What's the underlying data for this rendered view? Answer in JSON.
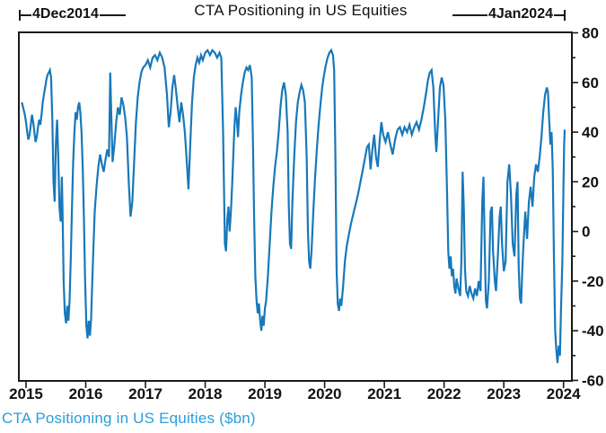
{
  "title": "CTA Positioning in US Equities",
  "annotations": {
    "start_label": "4Dec2014",
    "end_label": "4Jan2024"
  },
  "caption": "CTA Positioning in US Equities ($bn)",
  "colors": {
    "line": "#1878ba",
    "caption_text": "#2b9dda",
    "axis": "#1a1a1a",
    "title_text": "#111111"
  },
  "chart_data": {
    "type": "line",
    "title": "CTA Positioning in US Equities",
    "series_name": "CTA Positioning in US Equities ($bn)",
    "xlabel": "",
    "ylabel": "$bn",
    "x_ticks": [
      2015,
      2016,
      2017,
      2018,
      2019,
      2020,
      2021,
      2022,
      2023,
      2024
    ],
    "y_ticks": [
      -60,
      -40,
      -20,
      0,
      20,
      40,
      60,
      80
    ],
    "y_minor_step": 10,
    "xlim": [
      2014.88,
      2024.14
    ],
    "ylim": [
      -60.2,
      80.2
    ],
    "grid": false,
    "legend": "none",
    "date_range": [
      "4Dec2014",
      "4Jan2024"
    ],
    "points": [
      [
        2014.93,
        52
      ],
      [
        2014.95,
        50
      ],
      [
        2014.98,
        47
      ],
      [
        2015.0,
        44
      ],
      [
        2015.02,
        40
      ],
      [
        2015.04,
        37
      ],
      [
        2015.06,
        39
      ],
      [
        2015.08,
        43
      ],
      [
        2015.1,
        47
      ],
      [
        2015.12,
        44
      ],
      [
        2015.14,
        40
      ],
      [
        2015.16,
        36
      ],
      [
        2015.18,
        38
      ],
      [
        2015.2,
        42
      ],
      [
        2015.22,
        45
      ],
      [
        2015.24,
        43
      ],
      [
        2015.26,
        47
      ],
      [
        2015.28,
        52
      ],
      [
        2015.3,
        55
      ],
      [
        2015.32,
        58
      ],
      [
        2015.34,
        61
      ],
      [
        2015.36,
        63
      ],
      [
        2015.38,
        64
      ],
      [
        2015.4,
        65
      ],
      [
        2015.42,
        62
      ],
      [
        2015.44,
        45
      ],
      [
        2015.46,
        20
      ],
      [
        2015.48,
        12
      ],
      [
        2015.5,
        35
      ],
      [
        2015.52,
        45
      ],
      [
        2015.54,
        30
      ],
      [
        2015.56,
        10
      ],
      [
        2015.58,
        4
      ],
      [
        2015.6,
        22
      ],
      [
        2015.61,
        10
      ],
      [
        2015.63,
        -20
      ],
      [
        2015.65,
        -33
      ],
      [
        2015.67,
        -37
      ],
      [
        2015.69,
        -30
      ],
      [
        2015.71,
        -36
      ],
      [
        2015.73,
        -28
      ],
      [
        2015.75,
        -10
      ],
      [
        2015.77,
        10
      ],
      [
        2015.79,
        28
      ],
      [
        2015.81,
        40
      ],
      [
        2015.83,
        48
      ],
      [
        2015.85,
        45
      ],
      [
        2015.87,
        50
      ],
      [
        2015.89,
        52
      ],
      [
        2015.91,
        48
      ],
      [
        2015.93,
        40
      ],
      [
        2015.95,
        25
      ],
      [
        2015.97,
        5
      ],
      [
        2015.99,
        -20
      ],
      [
        2016.01,
        -38
      ],
      [
        2016.03,
        -43
      ],
      [
        2016.05,
        -36
      ],
      [
        2016.07,
        -42
      ],
      [
        2016.09,
        -35
      ],
      [
        2016.11,
        -20
      ],
      [
        2016.13,
        -5
      ],
      [
        2016.15,
        8
      ],
      [
        2016.18,
        18
      ],
      [
        2016.21,
        26
      ],
      [
        2016.24,
        31
      ],
      [
        2016.27,
        27
      ],
      [
        2016.3,
        24
      ],
      [
        2016.33,
        29
      ],
      [
        2016.36,
        33
      ],
      [
        2016.39,
        30
      ],
      [
        2016.41,
        64
      ],
      [
        2016.43,
        45
      ],
      [
        2016.45,
        28
      ],
      [
        2016.48,
        35
      ],
      [
        2016.51,
        44
      ],
      [
        2016.54,
        50
      ],
      [
        2016.57,
        47
      ],
      [
        2016.6,
        54
      ],
      [
        2016.63,
        51
      ],
      [
        2016.66,
        46
      ],
      [
        2016.69,
        38
      ],
      [
        2016.72,
        20
      ],
      [
        2016.75,
        6
      ],
      [
        2016.78,
        12
      ],
      [
        2016.81,
        28
      ],
      [
        2016.84,
        44
      ],
      [
        2016.87,
        54
      ],
      [
        2016.9,
        60
      ],
      [
        2016.93,
        64
      ],
      [
        2016.96,
        66
      ],
      [
        2017.0,
        67
      ],
      [
        2017.04,
        69
      ],
      [
        2017.08,
        66
      ],
      [
        2017.12,
        70
      ],
      [
        2017.16,
        71
      ],
      [
        2017.2,
        69
      ],
      [
        2017.24,
        72
      ],
      [
        2017.28,
        70
      ],
      [
        2017.32,
        66
      ],
      [
        2017.36,
        55
      ],
      [
        2017.39,
        42
      ],
      [
        2017.42,
        48
      ],
      [
        2017.45,
        58
      ],
      [
        2017.48,
        63
      ],
      [
        2017.51,
        57
      ],
      [
        2017.54,
        50
      ],
      [
        2017.57,
        44
      ],
      [
        2017.6,
        52
      ],
      [
        2017.63,
        47
      ],
      [
        2017.66,
        40
      ],
      [
        2017.7,
        25
      ],
      [
        2017.72,
        17
      ],
      [
        2017.75,
        35
      ],
      [
        2017.78,
        52
      ],
      [
        2017.81,
        62
      ],
      [
        2017.84,
        67
      ],
      [
        2017.87,
        70
      ],
      [
        2017.9,
        68
      ],
      [
        2017.93,
        71
      ],
      [
        2017.96,
        69
      ],
      [
        2018.0,
        72
      ],
      [
        2018.04,
        73
      ],
      [
        2018.08,
        71
      ],
      [
        2018.12,
        73
      ],
      [
        2018.16,
        72
      ],
      [
        2018.2,
        70
      ],
      [
        2018.24,
        72
      ],
      [
        2018.27,
        70
      ],
      [
        2018.3,
        40
      ],
      [
        2018.33,
        -5
      ],
      [
        2018.35,
        -8
      ],
      [
        2018.37,
        5
      ],
      [
        2018.39,
        10
      ],
      [
        2018.41,
        0
      ],
      [
        2018.43,
        8
      ],
      [
        2018.45,
        18
      ],
      [
        2018.47,
        30
      ],
      [
        2018.49,
        42
      ],
      [
        2018.51,
        50
      ],
      [
        2018.53,
        45
      ],
      [
        2018.55,
        38
      ],
      [
        2018.57,
        48
      ],
      [
        2018.6,
        55
      ],
      [
        2018.63,
        60
      ],
      [
        2018.66,
        64
      ],
      [
        2018.69,
        66
      ],
      [
        2018.72,
        65
      ],
      [
        2018.75,
        67
      ],
      [
        2018.78,
        62
      ],
      [
        2018.8,
        35
      ],
      [
        2018.82,
        5
      ],
      [
        2018.84,
        -18
      ],
      [
        2018.86,
        -28
      ],
      [
        2018.88,
        -33
      ],
      [
        2018.9,
        -29
      ],
      [
        2018.92,
        -36
      ],
      [
        2018.94,
        -40
      ],
      [
        2018.96,
        -34
      ],
      [
        2018.98,
        -38
      ],
      [
        2019.0,
        -31
      ],
      [
        2019.02,
        -28
      ],
      [
        2019.05,
        -18
      ],
      [
        2019.08,
        -5
      ],
      [
        2019.11,
        8
      ],
      [
        2019.14,
        18
      ],
      [
        2019.17,
        26
      ],
      [
        2019.2,
        32
      ],
      [
        2019.23,
        40
      ],
      [
        2019.26,
        50
      ],
      [
        2019.29,
        57
      ],
      [
        2019.32,
        60
      ],
      [
        2019.35,
        55
      ],
      [
        2019.38,
        40
      ],
      [
        2019.4,
        10
      ],
      [
        2019.42,
        -5
      ],
      [
        2019.44,
        -7
      ],
      [
        2019.46,
        12
      ],
      [
        2019.49,
        30
      ],
      [
        2019.52,
        44
      ],
      [
        2019.55,
        52
      ],
      [
        2019.58,
        56
      ],
      [
        2019.61,
        59
      ],
      [
        2019.64,
        57
      ],
      [
        2019.67,
        52
      ],
      [
        2019.7,
        30
      ],
      [
        2019.72,
        0
      ],
      [
        2019.74,
        -12
      ],
      [
        2019.76,
        -15
      ],
      [
        2019.78,
        -8
      ],
      [
        2019.81,
        8
      ],
      [
        2019.84,
        22
      ],
      [
        2019.87,
        33
      ],
      [
        2019.9,
        43
      ],
      [
        2019.93,
        51
      ],
      [
        2019.96,
        58
      ],
      [
        2019.99,
        63
      ],
      [
        2020.02,
        67
      ],
      [
        2020.05,
        70
      ],
      [
        2020.08,
        72
      ],
      [
        2020.11,
        73
      ],
      [
        2020.14,
        71
      ],
      [
        2020.16,
        65
      ],
      [
        2020.18,
        30
      ],
      [
        2020.2,
        -15
      ],
      [
        2020.22,
        -29
      ],
      [
        2020.24,
        -32
      ],
      [
        2020.26,
        -27
      ],
      [
        2020.28,
        -30
      ],
      [
        2020.31,
        -22
      ],
      [
        2020.34,
        -12
      ],
      [
        2020.37,
        -6
      ],
      [
        2020.4,
        -2
      ],
      [
        2020.44,
        3
      ],
      [
        2020.48,
        7
      ],
      [
        2020.52,
        11
      ],
      [
        2020.56,
        15
      ],
      [
        2020.6,
        20
      ],
      [
        2020.64,
        25
      ],
      [
        2020.68,
        30
      ],
      [
        2020.71,
        34
      ],
      [
        2020.74,
        35
      ],
      [
        2020.77,
        25
      ],
      [
        2020.8,
        33
      ],
      [
        2020.83,
        39
      ],
      [
        2020.86,
        30
      ],
      [
        2020.89,
        26
      ],
      [
        2020.92,
        36
      ],
      [
        2020.95,
        44
      ],
      [
        2020.98,
        39
      ],
      [
        2021.02,
        36
      ],
      [
        2021.06,
        40
      ],
      [
        2021.1,
        35
      ],
      [
        2021.14,
        31
      ],
      [
        2021.18,
        37
      ],
      [
        2021.22,
        41
      ],
      [
        2021.26,
        42
      ],
      [
        2021.3,
        39
      ],
      [
        2021.34,
        42
      ],
      [
        2021.38,
        40
      ],
      [
        2021.42,
        43
      ],
      [
        2021.46,
        39
      ],
      [
        2021.5,
        42
      ],
      [
        2021.54,
        44
      ],
      [
        2021.58,
        41
      ],
      [
        2021.62,
        45
      ],
      [
        2021.66,
        50
      ],
      [
        2021.7,
        56
      ],
      [
        2021.73,
        61
      ],
      [
        2021.76,
        64
      ],
      [
        2021.79,
        65
      ],
      [
        2021.82,
        58
      ],
      [
        2021.85,
        40
      ],
      [
        2021.87,
        32
      ],
      [
        2021.9,
        45
      ],
      [
        2021.93,
        58
      ],
      [
        2021.96,
        62
      ],
      [
        2021.99,
        59
      ],
      [
        2022.02,
        45
      ],
      [
        2022.05,
        15
      ],
      [
        2022.07,
        -8
      ],
      [
        2022.09,
        -15
      ],
      [
        2022.11,
        -10
      ],
      [
        2022.13,
        -18
      ],
      [
        2022.15,
        -15
      ],
      [
        2022.17,
        -22
      ],
      [
        2022.19,
        -25
      ],
      [
        2022.21,
        -19
      ],
      [
        2022.24,
        -23
      ],
      [
        2022.27,
        -26
      ],
      [
        2022.29,
        -12
      ],
      [
        2022.31,
        24
      ],
      [
        2022.33,
        10
      ],
      [
        2022.35,
        -15
      ],
      [
        2022.37,
        -24
      ],
      [
        2022.4,
        -26
      ],
      [
        2022.43,
        -22
      ],
      [
        2022.46,
        -25
      ],
      [
        2022.49,
        -27
      ],
      [
        2022.52,
        -23
      ],
      [
        2022.55,
        -26
      ],
      [
        2022.58,
        -20
      ],
      [
        2022.61,
        -24
      ],
      [
        2022.64,
        12
      ],
      [
        2022.66,
        22
      ],
      [
        2022.68,
        -5
      ],
      [
        2022.7,
        -28
      ],
      [
        2022.72,
        -31
      ],
      [
        2022.75,
        -20
      ],
      [
        2022.78,
        8
      ],
      [
        2022.8,
        10
      ],
      [
        2022.82,
        -8
      ],
      [
        2022.85,
        -20
      ],
      [
        2022.87,
        -24
      ],
      [
        2022.9,
        -10
      ],
      [
        2022.93,
        6
      ],
      [
        2022.95,
        10
      ],
      [
        2022.97,
        -5
      ],
      [
        2023.0,
        -16
      ],
      [
        2023.03,
        -12
      ],
      [
        2023.06,
        20
      ],
      [
        2023.09,
        27
      ],
      [
        2023.12,
        15
      ],
      [
        2023.15,
        -5
      ],
      [
        2023.18,
        -10
      ],
      [
        2023.21,
        15
      ],
      [
        2023.23,
        20
      ],
      [
        2023.25,
        -15
      ],
      [
        2023.27,
        -27
      ],
      [
        2023.29,
        -29
      ],
      [
        2023.31,
        -15
      ],
      [
        2023.33,
        -5
      ],
      [
        2023.36,
        8
      ],
      [
        2023.39,
        -3
      ],
      [
        2023.42,
        12
      ],
      [
        2023.45,
        18
      ],
      [
        2023.48,
        10
      ],
      [
        2023.51,
        22
      ],
      [
        2023.54,
        27
      ],
      [
        2023.57,
        24
      ],
      [
        2023.6,
        30
      ],
      [
        2023.63,
        38
      ],
      [
        2023.66,
        48
      ],
      [
        2023.69,
        55
      ],
      [
        2023.72,
        58
      ],
      [
        2023.74,
        56
      ],
      [
        2023.76,
        45
      ],
      [
        2023.78,
        35
      ],
      [
        2023.8,
        40
      ],
      [
        2023.82,
        25
      ],
      [
        2023.84,
        -10
      ],
      [
        2023.86,
        -40
      ],
      [
        2023.88,
        -48
      ],
      [
        2023.9,
        -53
      ],
      [
        2023.92,
        -46
      ],
      [
        2023.94,
        -50
      ],
      [
        2023.96,
        -30
      ],
      [
        2023.98,
        -12
      ],
      [
        2024.0,
        20
      ],
      [
        2024.01,
        35
      ],
      [
        2024.02,
        41
      ]
    ]
  }
}
